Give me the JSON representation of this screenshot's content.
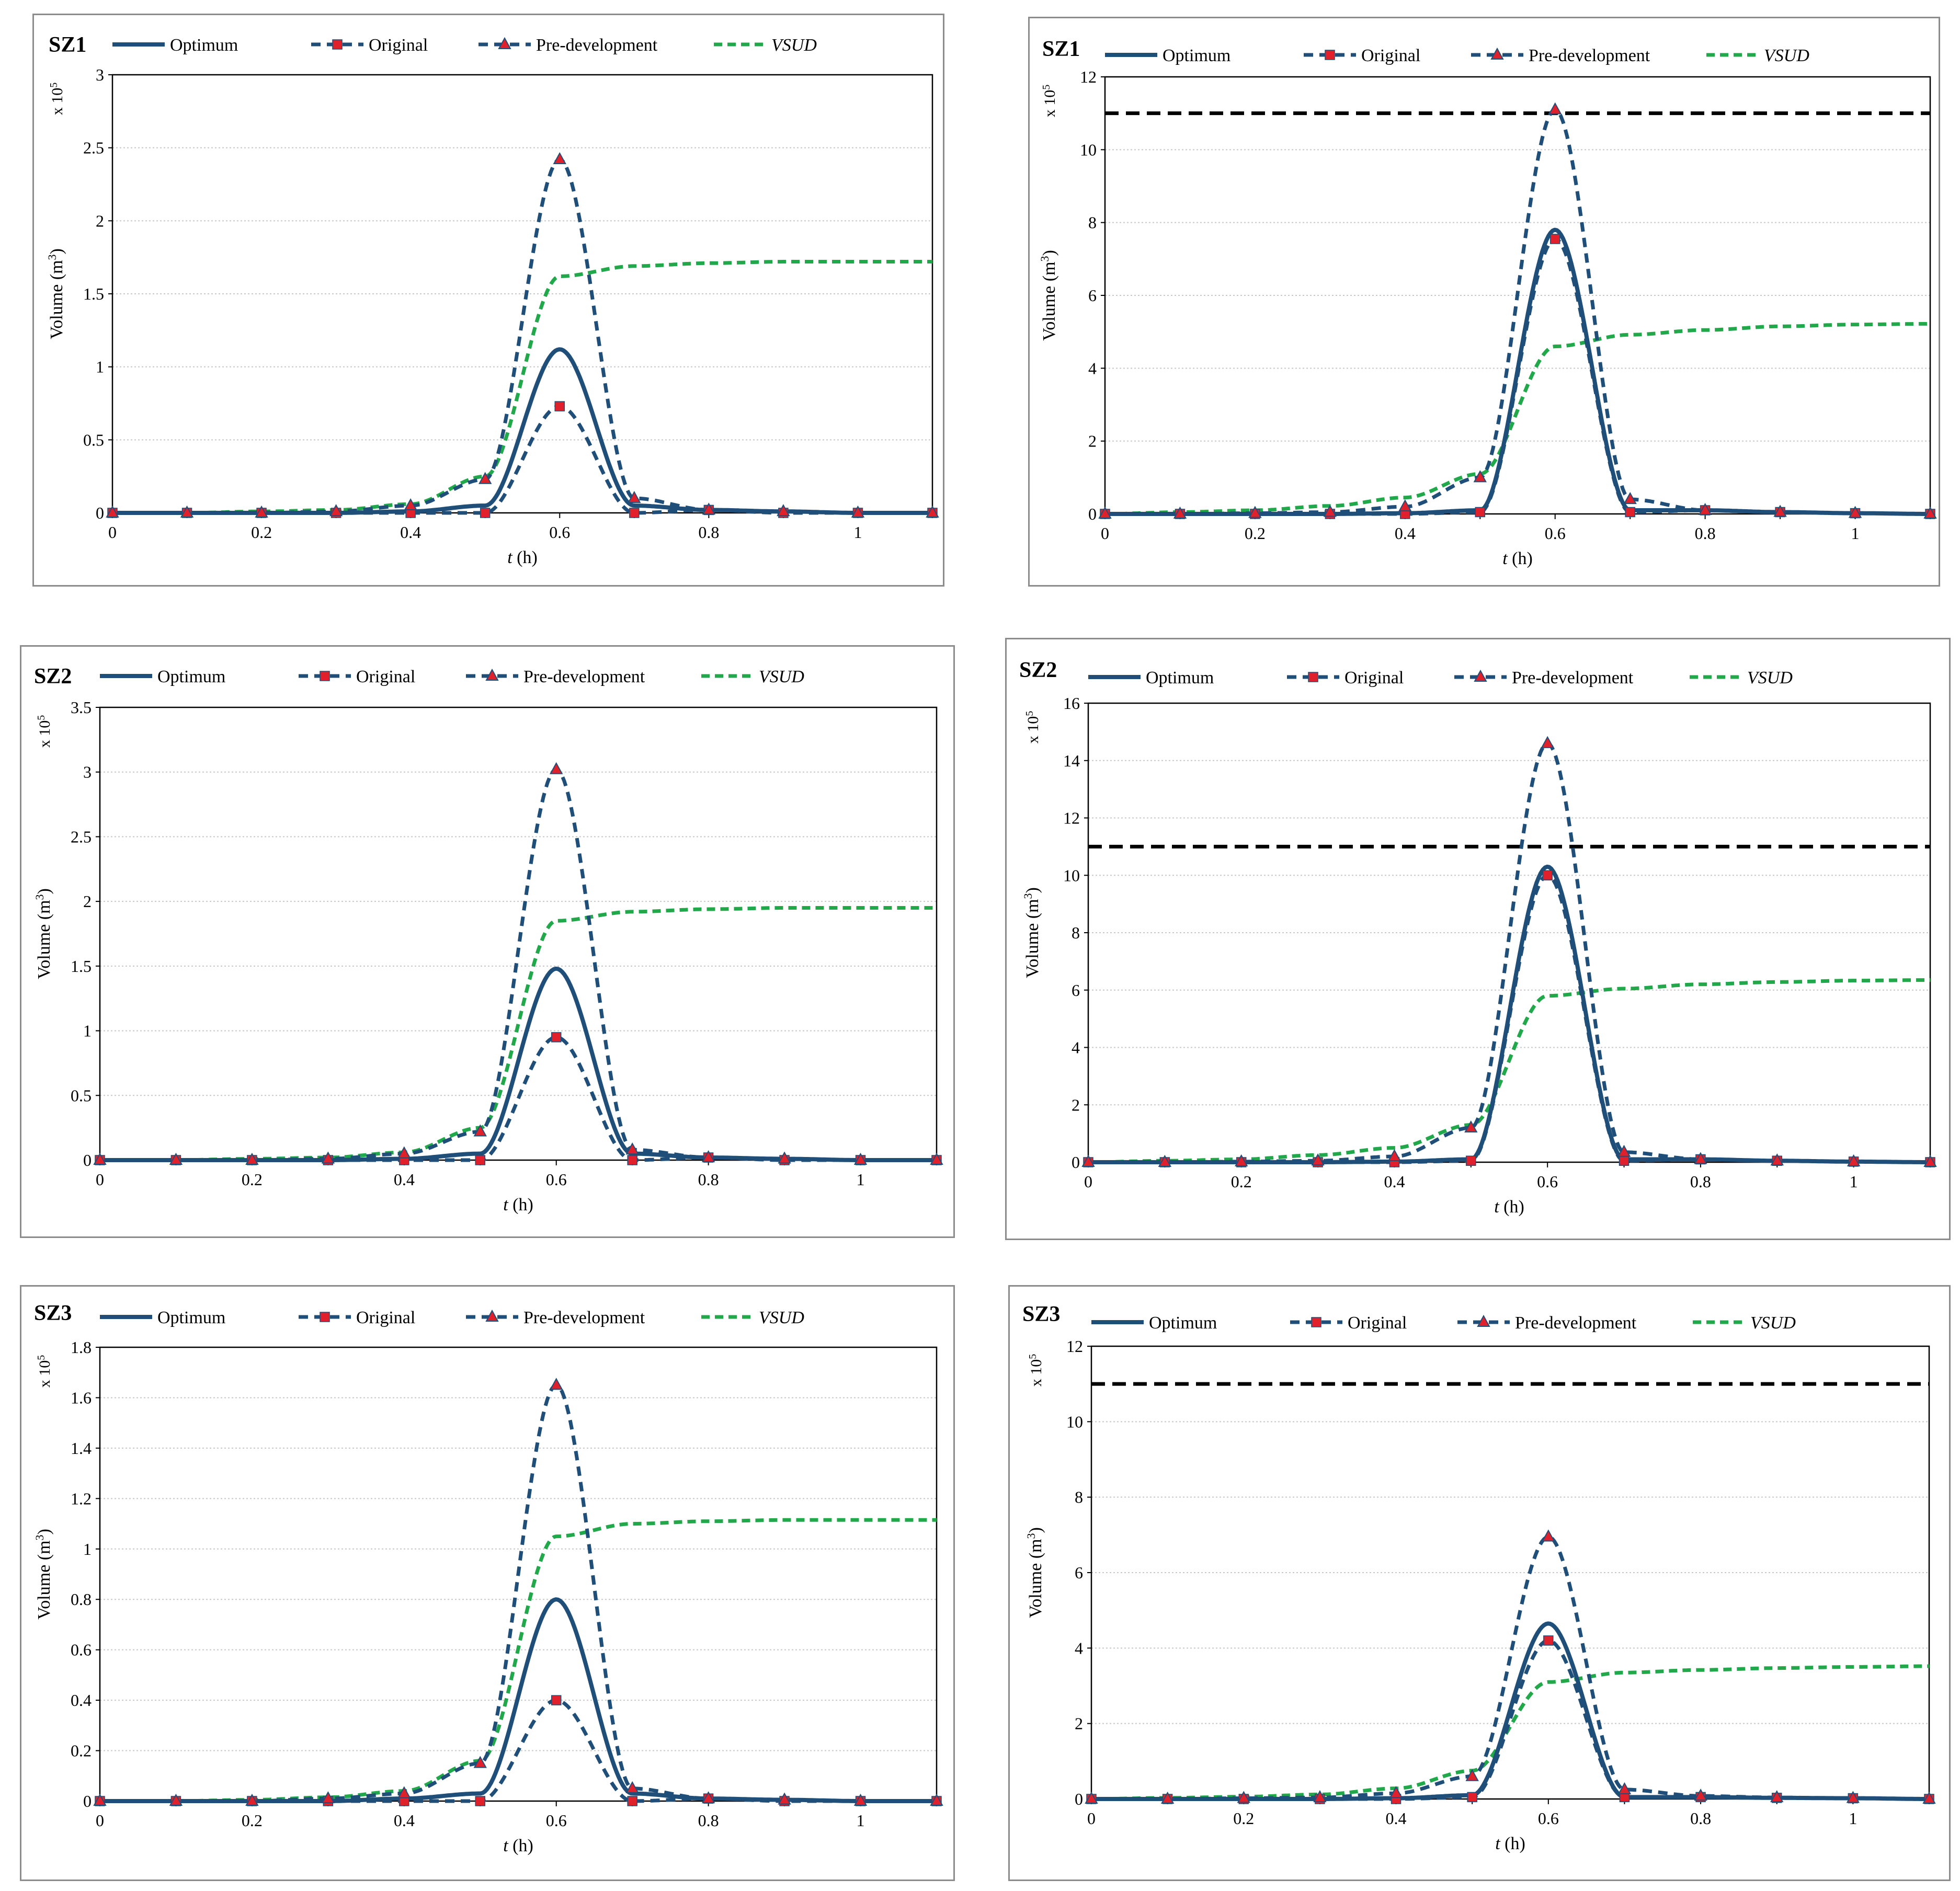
{
  "colors": {
    "navy": "#1f4e79",
    "marker_red": "#e0202a",
    "green": "#21a84a",
    "threshold": "#000000",
    "grid": "#c8c8c8",
    "border": "#8c8c8c"
  },
  "legend": {
    "optimum": "Optimum",
    "original": "Original",
    "predev": "Pre-development",
    "vsud": "VSUD"
  },
  "axes_text": {
    "ylabel_main": "Volume (m",
    "ylabel_sup": "3",
    "ylabel_end": ")",
    "xlabel_t": "t",
    "xlabel_unit": " (h)",
    "mult_main": "x 10",
    "mult_sup": "5"
  },
  "chart_data": [
    {
      "type": "line",
      "title": "SZ1",
      "xlabel": "t (h)",
      "ylabel": "Volume (m3) x 10^5",
      "xlim": [
        0,
        1.1
      ],
      "ylim": [
        0,
        3
      ],
      "xticks": [
        "0",
        "0.2",
        "0.4",
        "0.6",
        "0.8",
        "1"
      ],
      "yticks": [
        "0",
        "0.5",
        "1",
        "1.5",
        "2",
        "2.5",
        "3"
      ],
      "grid": true,
      "legend": "top",
      "threshold": null,
      "x": [
        0,
        0.1,
        0.2,
        0.3,
        0.4,
        0.5,
        0.6,
        0.7,
        0.8,
        0.9,
        1.0,
        1.1
      ],
      "series": [
        {
          "name": "Optimum",
          "values": [
            0,
            0,
            0,
            0,
            0.01,
            0.05,
            1.12,
            0.05,
            0.02,
            0.01,
            0,
            0
          ]
        },
        {
          "name": "Original",
          "values": [
            0,
            0,
            0,
            0,
            0,
            0,
            0.73,
            0,
            0.02,
            0,
            0,
            0
          ]
        },
        {
          "name": "Pre-development",
          "values": [
            0,
            0,
            0,
            0.01,
            0.05,
            0.23,
            2.42,
            0.1,
            0.02,
            0.01,
            0,
            0
          ]
        },
        {
          "name": "VSUD",
          "values": [
            0,
            0,
            0.01,
            0.02,
            0.06,
            0.25,
            1.62,
            1.69,
            1.71,
            1.72,
            1.72,
            1.72
          ]
        }
      ]
    },
    {
      "type": "line",
      "title": "SZ1",
      "xlabel": "t (h)",
      "ylabel": "Volume (m3) x 10^5",
      "xlim": [
        0,
        1.1
      ],
      "ylim": [
        0,
        12
      ],
      "xticks": [
        "0",
        "0.2",
        "0.4",
        "0.6",
        "0.8",
        "1"
      ],
      "yticks": [
        "0",
        "2",
        "4",
        "6",
        "8",
        "10",
        "12"
      ],
      "grid": true,
      "legend": "top",
      "threshold": 11,
      "x": [
        0,
        0.1,
        0.2,
        0.3,
        0.4,
        0.5,
        0.6,
        0.7,
        0.8,
        0.9,
        1.0,
        1.1
      ],
      "series": [
        {
          "name": "Optimum",
          "values": [
            0,
            0,
            0,
            0,
            0.02,
            0.1,
            7.8,
            0.1,
            0.1,
            0.05,
            0.02,
            0
          ]
        },
        {
          "name": "Original",
          "values": [
            0,
            0,
            0,
            0,
            0,
            0.05,
            7.55,
            0.05,
            0.1,
            0.05,
            0.02,
            0
          ]
        },
        {
          "name": "Pre-development",
          "values": [
            0,
            0,
            0.02,
            0.05,
            0.2,
            1.0,
            11.1,
            0.4,
            0.1,
            0.05,
            0.02,
            0
          ]
        },
        {
          "name": "VSUD",
          "values": [
            0,
            0.05,
            0.1,
            0.22,
            0.45,
            1.1,
            4.6,
            4.92,
            5.05,
            5.15,
            5.2,
            5.22
          ]
        }
      ]
    },
    {
      "type": "line",
      "title": "SZ2",
      "xlabel": "t (h)",
      "ylabel": "Volume (m3) x 10^5",
      "xlim": [
        0,
        1.1
      ],
      "ylim": [
        0,
        3.5
      ],
      "xticks": [
        "0",
        "0.2",
        "0.4",
        "0.6",
        "0.8",
        "1"
      ],
      "yticks": [
        "0",
        "0.5",
        "1",
        "1.5",
        "2",
        "2.5",
        "3",
        "3.5"
      ],
      "grid": true,
      "legend": "top",
      "threshold": null,
      "x": [
        0,
        0.1,
        0.2,
        0.3,
        0.4,
        0.5,
        0.6,
        0.7,
        0.8,
        0.9,
        1.0,
        1.1
      ],
      "series": [
        {
          "name": "Optimum",
          "values": [
            0,
            0,
            0,
            0,
            0.01,
            0.05,
            1.48,
            0.05,
            0.02,
            0.01,
            0,
            0
          ]
        },
        {
          "name": "Original",
          "values": [
            0,
            0,
            0,
            0,
            0,
            0,
            0.95,
            0,
            0.02,
            0,
            0,
            0
          ]
        },
        {
          "name": "Pre-development",
          "values": [
            0,
            0,
            0,
            0.01,
            0.05,
            0.22,
            3.02,
            0.08,
            0.02,
            0.01,
            0,
            0
          ]
        },
        {
          "name": "VSUD",
          "values": [
            0,
            0,
            0.01,
            0.02,
            0.06,
            0.25,
            1.85,
            1.92,
            1.94,
            1.95,
            1.95,
            1.95
          ]
        }
      ]
    },
    {
      "type": "line",
      "title": "SZ2",
      "xlabel": "t (h)",
      "ylabel": "Volume (m3) x 10^5",
      "xlim": [
        0,
        1.1
      ],
      "ylim": [
        0,
        16
      ],
      "xticks": [
        "0",
        "0.2",
        "0.4",
        "0.6",
        "0.8",
        "1"
      ],
      "yticks": [
        "0",
        "2",
        "4",
        "6",
        "8",
        "10",
        "12",
        "14",
        "16"
      ],
      "grid": true,
      "legend": "top",
      "threshold": 11,
      "x": [
        0,
        0.1,
        0.2,
        0.3,
        0.4,
        0.5,
        0.6,
        0.7,
        0.8,
        0.9,
        1.0,
        1.1
      ],
      "series": [
        {
          "name": "Optimum",
          "values": [
            0,
            0,
            0,
            0,
            0.02,
            0.1,
            10.3,
            0.1,
            0.1,
            0.05,
            0.02,
            0
          ]
        },
        {
          "name": "Original",
          "values": [
            0,
            0,
            0,
            0,
            0,
            0.05,
            10.0,
            0.05,
            0.1,
            0.05,
            0.02,
            0
          ]
        },
        {
          "name": "Pre-development",
          "values": [
            0,
            0,
            0.02,
            0.05,
            0.2,
            1.2,
            14.6,
            0.35,
            0.1,
            0.05,
            0.02,
            0
          ]
        },
        {
          "name": "VSUD",
          "values": [
            0,
            0.05,
            0.1,
            0.25,
            0.5,
            1.3,
            5.8,
            6.05,
            6.2,
            6.28,
            6.33,
            6.35
          ]
        }
      ]
    },
    {
      "type": "line",
      "title": "SZ3",
      "xlabel": "t (h)",
      "ylabel": "Volume (m3) x 10^5",
      "xlim": [
        0,
        1.1
      ],
      "ylim": [
        0,
        1.8
      ],
      "xticks": [
        "0",
        "0.2",
        "0.4",
        "0.6",
        "0.8",
        "1"
      ],
      "yticks": [
        "0",
        "0.2",
        "0.4",
        "0.6",
        "0.8",
        "1",
        "1.2",
        "1.4",
        "1.6",
        "1.8"
      ],
      "grid": true,
      "legend": "top",
      "threshold": null,
      "x": [
        0,
        0.1,
        0.2,
        0.3,
        0.4,
        0.5,
        0.6,
        0.7,
        0.8,
        0.9,
        1.0,
        1.1
      ],
      "series": [
        {
          "name": "Optimum",
          "values": [
            0,
            0,
            0,
            0,
            0.01,
            0.03,
            0.8,
            0.03,
            0.01,
            0.005,
            0,
            0
          ]
        },
        {
          "name": "Original",
          "values": [
            0,
            0,
            0,
            0,
            0,
            0,
            0.4,
            0,
            0.01,
            0,
            0,
            0
          ]
        },
        {
          "name": "Pre-development",
          "values": [
            0,
            0,
            0,
            0.01,
            0.03,
            0.15,
            1.65,
            0.05,
            0.01,
            0.005,
            0,
            0
          ]
        },
        {
          "name": "VSUD",
          "values": [
            0,
            0,
            0.005,
            0.015,
            0.04,
            0.16,
            1.05,
            1.1,
            1.11,
            1.115,
            1.115,
            1.115
          ]
        }
      ]
    },
    {
      "type": "line",
      "title": "SZ3",
      "xlabel": "t (h)",
      "ylabel": "Volume (m3) x 10^5",
      "xlim": [
        0,
        1.1
      ],
      "ylim": [
        0,
        12
      ],
      "xticks": [
        "0",
        "0.2",
        "0.4",
        "0.6",
        "0.8",
        "1"
      ],
      "yticks": [
        "0",
        "2",
        "4",
        "6",
        "8",
        "10",
        "12"
      ],
      "grid": true,
      "legend": "top",
      "threshold": 11,
      "x": [
        0,
        0.1,
        0.2,
        0.3,
        0.4,
        0.5,
        0.6,
        0.7,
        0.8,
        0.9,
        1.0,
        1.1
      ],
      "series": [
        {
          "name": "Optimum",
          "values": [
            0,
            0,
            0,
            0,
            0.02,
            0.1,
            4.65,
            0.05,
            0.05,
            0.03,
            0.02,
            0
          ]
        },
        {
          "name": "Original",
          "values": [
            0,
            0,
            0,
            0,
            0,
            0.05,
            4.2,
            0.05,
            0.05,
            0.03,
            0.02,
            0
          ]
        },
        {
          "name": "Pre-development",
          "values": [
            0,
            0,
            0.02,
            0.04,
            0.15,
            0.6,
            6.95,
            0.25,
            0.08,
            0.04,
            0.02,
            0
          ]
        },
        {
          "name": "VSUD",
          "values": [
            0,
            0.03,
            0.06,
            0.12,
            0.28,
            0.75,
            3.1,
            3.35,
            3.42,
            3.47,
            3.5,
            3.52
          ]
        }
      ]
    }
  ]
}
